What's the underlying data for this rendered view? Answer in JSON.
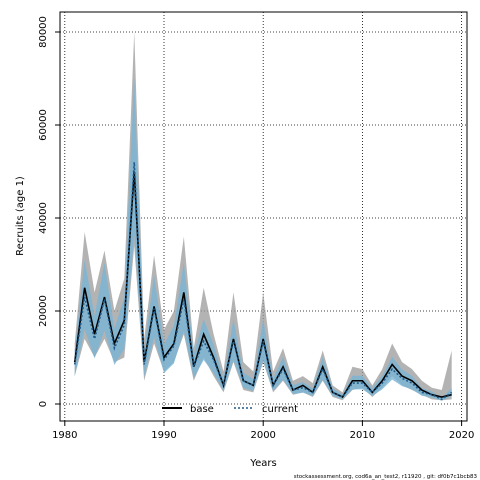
{
  "chart_data": {
    "type": "line",
    "xlabel": "Years",
    "ylabel": "Recruits (age 1)",
    "xlim": [
      1980,
      2020
    ],
    "ylim": [
      0,
      82000
    ],
    "xticks": [
      1980,
      1990,
      2000,
      2010,
      2020
    ],
    "yticks": [
      0,
      20000,
      40000,
      60000,
      80000
    ],
    "grid": true,
    "legend_position": "bottom-center",
    "x": [
      1981,
      1982,
      1983,
      1984,
      1985,
      1986,
      1987,
      1988,
      1989,
      1990,
      1991,
      1992,
      1993,
      1994,
      1995,
      1996,
      1997,
      1998,
      1999,
      2000,
      2001,
      2002,
      2003,
      2004,
      2005,
      2006,
      2007,
      2008,
      2009,
      2010,
      2011,
      2012,
      2013,
      2014,
      2015,
      2016,
      2017,
      2018,
      2019
    ],
    "series": [
      {
        "name": "base",
        "color": "#000000",
        "band_color": "#999999",
        "values": [
          9000,
          25000,
          15000,
          23000,
          13000,
          18000,
          50000,
          9000,
          21000,
          10000,
          13000,
          24000,
          8000,
          15000,
          10000,
          4000,
          14000,
          5000,
          4000,
          14000,
          4000,
          8000,
          3000,
          4000,
          2500,
          8000,
          2500,
          1500,
          5000,
          5000,
          2500,
          5000,
          8500,
          6000,
          5000,
          3000,
          2000,
          1500,
          2000
        ],
        "lower": [
          6000,
          14000,
          10000,
          14000,
          9000,
          10000,
          34000,
          5000,
          13000,
          7000,
          9000,
          15000,
          5000,
          10000,
          6000,
          2500,
          9000,
          3000,
          2500,
          9000,
          2500,
          5000,
          2000,
          2500,
          1500,
          5000,
          1500,
          800,
          3000,
          3500,
          1500,
          3500,
          6000,
          4000,
          3000,
          2000,
          1000,
          800,
          1000
        ],
        "upper": [
          13000,
          37000,
          24000,
          33000,
          20000,
          27000,
          80000,
          14000,
          32000,
          16000,
          20000,
          36000,
          12000,
          25000,
          15000,
          7000,
          24000,
          9000,
          7000,
          24000,
          7000,
          12000,
          5000,
          6000,
          4500,
          11500,
          4000,
          2500,
          8000,
          7500,
          4000,
          7500,
          13000,
          9000,
          7500,
          5000,
          3500,
          3000,
          11500
        ]
      },
      {
        "name": "current",
        "color": "#1f5b8b",
        "band_color": "#79b4d4",
        "values": [
          8500,
          23000,
          14000,
          22500,
          12000,
          17000,
          52000,
          8500,
          20500,
          9500,
          12500,
          22500,
          8000,
          13500,
          9500,
          4000,
          13500,
          5000,
          4000,
          13500,
          4000,
          7500,
          3000,
          3500,
          2500,
          7500,
          2500,
          1500,
          4500,
          4500,
          2500,
          4500,
          7500,
          5500,
          4500,
          2500,
          2000,
          1000,
          2500
        ]
      }
    ]
  },
  "legend": {
    "base_label": "base",
    "current_label": "current"
  },
  "footer": {
    "text": "stockassessment.org, cod6a_an_test2, r11920 , git: df0b7c1bcb83"
  }
}
